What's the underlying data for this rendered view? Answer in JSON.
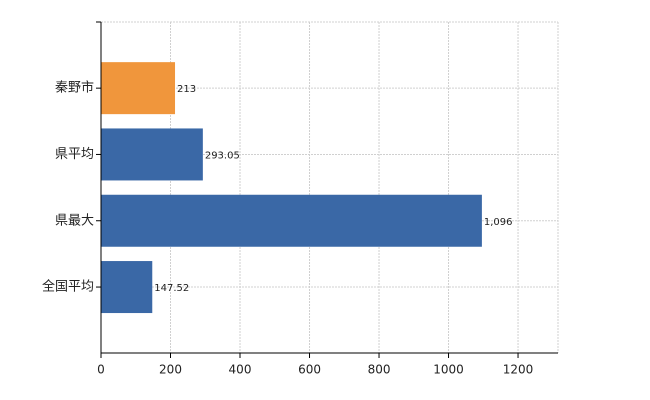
{
  "chart_data": {
    "type": "bar",
    "orientation": "horizontal",
    "categories": [
      "秦野市",
      "県平均",
      "県最大",
      "全国平均"
    ],
    "values": [
      213,
      293.05,
      1096,
      147.52
    ],
    "value_labels": [
      "213",
      "293.05",
      "1,096",
      "147.52"
    ],
    "colors": [
      "#f0963c",
      "#3a68a6",
      "#3a68a6",
      "#3a68a6"
    ],
    "xlim": [
      0,
      1315
    ],
    "xticks": [
      0,
      200,
      400,
      600,
      800,
      1000,
      1200
    ],
    "grid": true
  }
}
